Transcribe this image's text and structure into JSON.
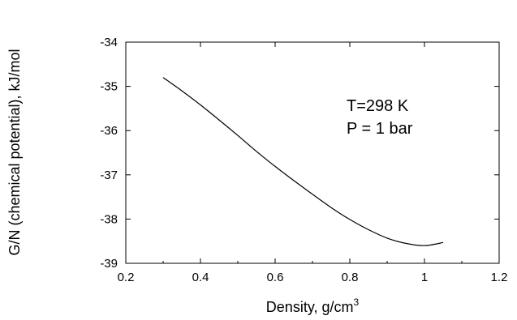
{
  "chart_data": {
    "type": "line",
    "xlabel": "Density, g/cm",
    "xlabel_superscript": "3",
    "ylabel": "G/N (chemical potential), kJ/mol",
    "xlim": [
      0.2,
      1.2
    ],
    "ylim": [
      -39,
      -34
    ],
    "x_ticks": [
      "0.2",
      "0.4",
      "0.6",
      "0.8",
      "1",
      "1.2"
    ],
    "y_ticks": [
      "-34",
      "-35",
      "-36",
      "-37",
      "-38",
      "-39"
    ],
    "grid": false,
    "annotations": [
      "T=298 K",
      "P = 1 bar"
    ],
    "series": [
      {
        "x": [
          0.3,
          0.35,
          0.4,
          0.45,
          0.5,
          0.55,
          0.6,
          0.65,
          0.7,
          0.75,
          0.8,
          0.85,
          0.9,
          0.95,
          1.0,
          1.05
        ],
        "y": [
          -34.8,
          -35.1,
          -35.42,
          -35.76,
          -36.11,
          -36.47,
          -36.81,
          -37.13,
          -37.44,
          -37.74,
          -38.01,
          -38.24,
          -38.43,
          -38.55,
          -38.6,
          -38.53
        ],
        "color": "#000000"
      }
    ]
  }
}
